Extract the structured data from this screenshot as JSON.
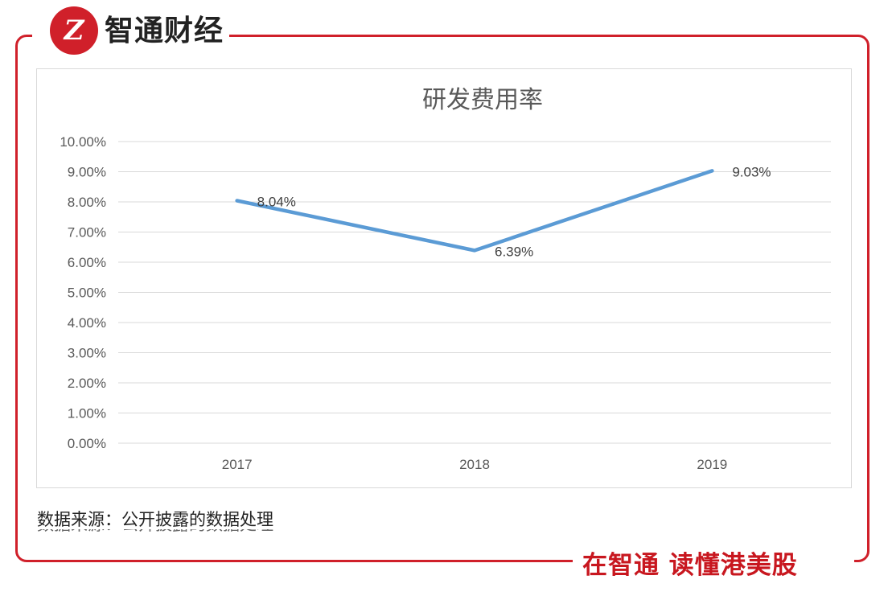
{
  "brand": {
    "logo_letter": "Z",
    "name": "智通财经",
    "slogan": "在智通  读懂港美股"
  },
  "source_note": "数据来源：公开披露的数据处理",
  "colors": {
    "brand_red": "#d0202a",
    "line": "#5b9bd5",
    "grid": "#d9d9d9",
    "text": "#595959"
  },
  "chart_data": {
    "type": "line",
    "title": "研发费用率",
    "categories": [
      "2017",
      "2018",
      "2019"
    ],
    "series": [
      {
        "values": [
          8.04,
          6.39,
          9.03
        ]
      }
    ],
    "data_labels": [
      "8.04%",
      "6.39%",
      "9.03%"
    ],
    "ylim": [
      0,
      10
    ],
    "yticks": [
      0,
      1,
      2,
      3,
      4,
      5,
      6,
      7,
      8,
      9,
      10
    ],
    "ytick_labels": [
      "0.00%",
      "1.00%",
      "2.00%",
      "3.00%",
      "4.00%",
      "5.00%",
      "6.00%",
      "7.00%",
      "8.00%",
      "9.00%",
      "10.00%"
    ],
    "grid": true,
    "legend": "none"
  }
}
